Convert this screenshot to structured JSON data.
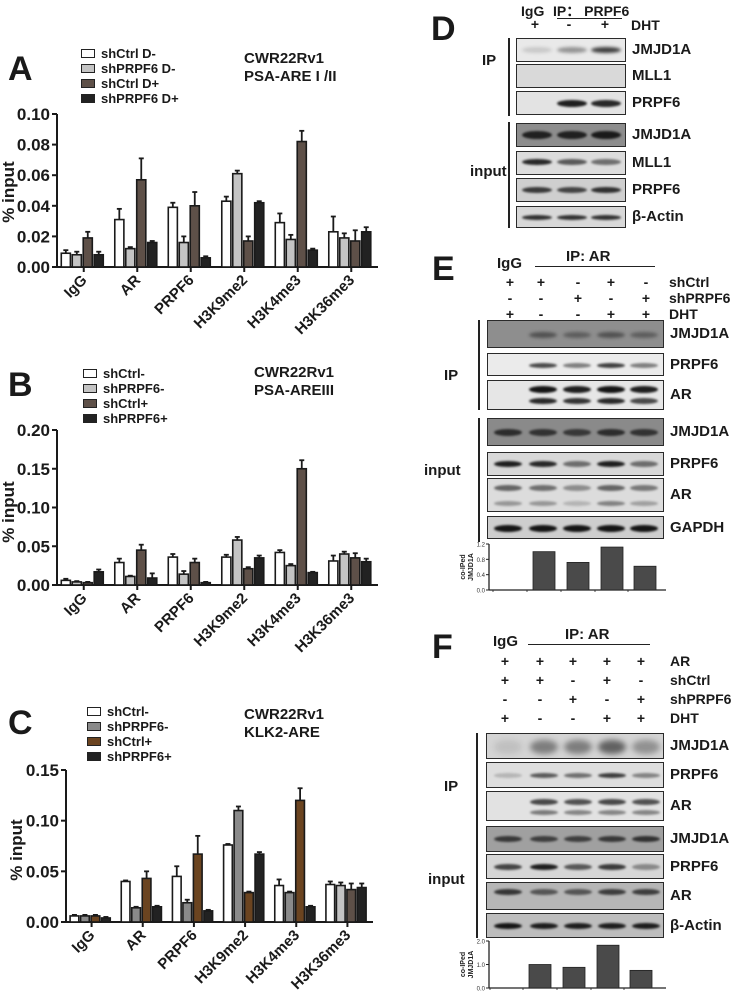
{
  "panels": {
    "A": {
      "letter": "A",
      "title_line1": "CWR22Rv1",
      "title_line2": "PSA-ARE I /II",
      "legend": [
        "shCtrl D-",
        "shPRPF6 D-",
        "shCtrl D+",
        "shPRPF6 D+"
      ],
      "ylabel": "% input",
      "yticks": [
        "0.00",
        "0.02",
        "0.04",
        "0.06",
        "0.08",
        "0.10"
      ]
    },
    "B": {
      "letter": "B",
      "title_line1": "CWR22Rv1",
      "title_line2": "PSA-AREIII",
      "legend": [
        "shCtrl-",
        "shPRPF6-",
        "shCtrl+",
        "shPRPF6+"
      ],
      "ylabel": "% input",
      "yticks": [
        "0.00",
        "0.05",
        "0.10",
        "0.15",
        "0.20"
      ]
    },
    "C": {
      "letter": "C",
      "title_line1": "CWR22Rv1",
      "title_line2": "KLK2-ARE",
      "legend": [
        "shCtrl-",
        "shPRPF6-",
        "shCtrl+",
        "shPRPF6+"
      ],
      "ylabel": "% input",
      "yticks": [
        "0.00",
        "0.05",
        "0.10",
        "0.15"
      ]
    },
    "D": {
      "letter": "D",
      "header": "IgG IP： PRPF6",
      "header_igg": "IgG",
      "header_ip": "IP： PRPF6",
      "conditions": [
        {
          "name": "DHT",
          "values": [
            "+",
            "-",
            "+"
          ]
        }
      ],
      "ip_label": "IP",
      "input_label": "input",
      "ip_rows": [
        "JMJD1A",
        "MLL1",
        "PRPF6"
      ],
      "input_rows": [
        "JMJD1A",
        "MLL1",
        "PRPF6",
        "β-Actin"
      ]
    },
    "E": {
      "letter": "E",
      "header_igg": "IgG",
      "header_ip": "IP: AR",
      "conditions": [
        {
          "name": "shCtrl",
          "values": [
            "+",
            "+",
            "-",
            "+",
            "-"
          ]
        },
        {
          "name": "shPRPF6",
          "values": [
            "-",
            "-",
            "+",
            "-",
            "+"
          ]
        },
        {
          "name": "DHT",
          "values": [
            "+",
            "-",
            "-",
            "+",
            "+"
          ]
        }
      ],
      "ip_label": "IP",
      "input_label": "input",
      "ip_rows": [
        "JMJD1A",
        "PRPF6",
        "AR"
      ],
      "input_rows": [
        "JMJD1A",
        "PRPF6",
        "AR",
        "GAPDH"
      ],
      "quant_ylabel_1": "co-IPed",
      "quant_ylabel_2": "JMJD1A",
      "quant_yticks": [
        "0.0",
        "0.4",
        "0.8",
        "1.2"
      ]
    },
    "F": {
      "letter": "F",
      "header_igg": "IgG",
      "header_ip": "IP: AR",
      "conditions": [
        {
          "name": "AR",
          "values": [
            "+",
            "+",
            "+",
            "+",
            "+"
          ]
        },
        {
          "name": "shCtrl",
          "values": [
            "+",
            "+",
            "-",
            "+",
            "-"
          ]
        },
        {
          "name": "shPRPF6",
          "values": [
            "-",
            "-",
            "+",
            "-",
            "+"
          ]
        },
        {
          "name": "DHT",
          "values": [
            "+",
            "-",
            "-",
            "+",
            "+"
          ]
        }
      ],
      "ip_label": "IP",
      "input_label": "input",
      "ip_rows": [
        "JMJD1A",
        "PRPF6",
        "AR"
      ],
      "input_rows": [
        "JMJD1A",
        "PRPF6",
        "AR",
        "β-Actin"
      ],
      "quant_ylabel_1": "co-IPed",
      "quant_ylabel_2": "JMJD1A",
      "quant_yticks": [
        "0.0",
        "1.0",
        "2.0"
      ]
    }
  },
  "colors": {
    "A": [
      "#ffffff",
      "#c4c4c4",
      "#5e5048",
      "#222222"
    ],
    "B": [
      "#ffffff",
      "#c4c4c4",
      "#5e5048",
      "#222222"
    ],
    "C": [
      "#ffffff",
      "#8a8a8a",
      "#6b4420",
      "#222222"
    ],
    "C_H3K36me3": [
      "#ffffff",
      "#c4c4c4",
      "#5e5048",
      "#222222"
    ],
    "quant_bar": "#4a4a4a"
  },
  "chart_data": [
    {
      "panel": "A",
      "type": "bar",
      "title": "CWR22Rv1 PSA-ARE I /II",
      "xlabel": "",
      "ylabel": "% input",
      "ylim": [
        0,
        0.1
      ],
      "categories": [
        "IgG",
        "AR",
        "PRPF6",
        "H3K9me2",
        "H3K4me3",
        "H3K36me3"
      ],
      "legend_position": "top-left",
      "grid": false,
      "series": [
        {
          "name": "shCtrl D-",
          "values": [
            0.009,
            0.031,
            0.039,
            0.043,
            0.029,
            0.023
          ],
          "errors": [
            0.002,
            0.007,
            0.003,
            0.003,
            0.006,
            0.01
          ]
        },
        {
          "name": "shPRPF6 D-",
          "values": [
            0.008,
            0.012,
            0.016,
            0.061,
            0.018,
            0.019
          ],
          "errors": [
            0.002,
            0.001,
            0.004,
            0.002,
            0.003,
            0.003
          ]
        },
        {
          "name": "shCtrl D+",
          "values": [
            0.019,
            0.057,
            0.04,
            0.017,
            0.082,
            0.017
          ],
          "errors": [
            0.004,
            0.014,
            0.009,
            0.003,
            0.007,
            0.007
          ]
        },
        {
          "name": "shPRPF6 D+",
          "values": [
            0.008,
            0.016,
            0.006,
            0.042,
            0.011,
            0.023
          ],
          "errors": [
            0.002,
            0.001,
            0.001,
            0.001,
            0.001,
            0.003
          ]
        }
      ]
    },
    {
      "panel": "B",
      "type": "bar",
      "title": "CWR22Rv1 PSA-AREIII",
      "xlabel": "",
      "ylabel": "% input",
      "ylim": [
        0,
        0.2
      ],
      "categories": [
        "IgG",
        "AR",
        "PRPF6",
        "H3K9me2",
        "H3K4me3",
        "H3K36me3"
      ],
      "legend_position": "top-left",
      "grid": false,
      "series": [
        {
          "name": "shCtrl-",
          "values": [
            0.006,
            0.029,
            0.036,
            0.036,
            0.042,
            0.031
          ],
          "errors": [
            0.002,
            0.005,
            0.004,
            0.003,
            0.003,
            0.007
          ]
        },
        {
          "name": "shPRPF6-",
          "values": [
            0.004,
            0.011,
            0.014,
            0.058,
            0.025,
            0.04
          ],
          "errors": [
            0.001,
            0.001,
            0.004,
            0.004,
            0.002,
            0.003
          ]
        },
        {
          "name": "shCtrl+",
          "values": [
            0.003,
            0.045,
            0.029,
            0.021,
            0.15,
            0.035
          ],
          "errors": [
            0.001,
            0.007,
            0.005,
            0.002,
            0.011,
            0.006
          ]
        },
        {
          "name": "shPRPF6+",
          "values": [
            0.017,
            0.009,
            0.003,
            0.035,
            0.016,
            0.03
          ],
          "errors": [
            0.003,
            0.006,
            0.001,
            0.003,
            0.001,
            0.004
          ]
        }
      ]
    },
    {
      "panel": "C",
      "type": "bar",
      "title": "CWR22Rv1 KLK2-ARE",
      "xlabel": "",
      "ylabel": "% input",
      "ylim": [
        0,
        0.15
      ],
      "categories": [
        "IgG",
        "AR",
        "PRPF6",
        "H3K9me2",
        "H3K4me3",
        "H3K36me3"
      ],
      "legend_position": "top-left",
      "grid": false,
      "series": [
        {
          "name": "shCtrl-",
          "values": [
            0.006,
            0.04,
            0.045,
            0.076,
            0.036,
            0.037
          ],
          "errors": [
            0.001,
            0.001,
            0.01,
            0.001,
            0.006,
            0.003
          ]
        },
        {
          "name": "shPRPF6-",
          "values": [
            0.006,
            0.014,
            0.019,
            0.11,
            0.029,
            0.036
          ],
          "errors": [
            0.001,
            0.001,
            0.003,
            0.004,
            0.001,
            0.003
          ]
        },
        {
          "name": "shCtrl+",
          "values": [
            0.006,
            0.043,
            0.067,
            0.029,
            0.12,
            0.032
          ],
          "errors": [
            0.001,
            0.007,
            0.018,
            0.001,
            0.012,
            0.006
          ]
        },
        {
          "name": "shPRPF6+",
          "values": [
            0.004,
            0.015,
            0.011,
            0.067,
            0.015,
            0.034
          ],
          "errors": [
            0.001,
            0.001,
            0.001,
            0.002,
            0.001,
            0.004
          ]
        }
      ]
    },
    {
      "panel": "E",
      "type": "bar",
      "title": "",
      "xlabel": "",
      "ylabel": "co-IPed JMJD1A",
      "ylim": [
        0,
        1.2
      ],
      "categories": [
        "IgG",
        "shCtrl/-DHT",
        "shPRPF6/-DHT",
        "shCtrl/+DHT",
        "shPRPF6/+DHT"
      ],
      "values": [
        0,
        1.0,
        0.72,
        1.12,
        0.62
      ]
    },
    {
      "panel": "F",
      "type": "bar",
      "title": "",
      "xlabel": "",
      "ylabel": "co-IPed JMJD1A",
      "ylim": [
        0,
        2.0
      ],
      "categories": [
        "IgG",
        "shCtrl/-DHT",
        "shPRPF6/-DHT",
        "shCtrl/+DHT",
        "shPRPF6/+DHT"
      ],
      "values": [
        0,
        1.0,
        0.88,
        1.82,
        0.75
      ]
    }
  ]
}
